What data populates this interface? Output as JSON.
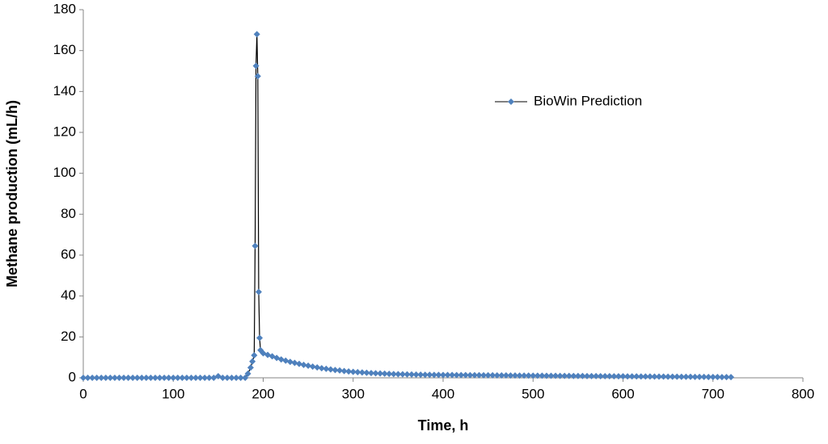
{
  "chart_data": {
    "type": "line",
    "x_label": "Time, h",
    "y_label": "Methane production (mL/h)",
    "xlim": [
      0,
      800
    ],
    "xticks": [
      0,
      100,
      200,
      300,
      400,
      500,
      600,
      700,
      800
    ],
    "ylim": [
      0,
      180
    ],
    "yticks": [
      0,
      20,
      40,
      60,
      80,
      100,
      120,
      140,
      160,
      180
    ],
    "grid": false,
    "legend": "upper-right",
    "x": [
      0,
      5,
      10,
      15,
      20,
      25,
      30,
      35,
      40,
      45,
      50,
      55,
      60,
      65,
      70,
      75,
      80,
      85,
      90,
      95,
      100,
      105,
      110,
      115,
      120,
      125,
      130,
      135,
      140,
      145,
      150,
      155,
      160,
      165,
      170,
      175,
      180,
      183,
      186,
      188,
      190,
      191,
      192,
      193,
      194,
      195,
      196,
      197,
      200,
      205,
      210,
      215,
      220,
      225,
      230,
      235,
      240,
      245,
      250,
      255,
      260,
      265,
      270,
      275,
      280,
      285,
      290,
      295,
      300,
      305,
      310,
      315,
      320,
      325,
      330,
      335,
      340,
      345,
      350,
      355,
      360,
      365,
      370,
      375,
      380,
      385,
      390,
      395,
      400,
      405,
      410,
      415,
      420,
      425,
      430,
      435,
      440,
      445,
      450,
      455,
      460,
      465,
      470,
      475,
      480,
      485,
      490,
      495,
      500,
      505,
      510,
      515,
      520,
      525,
      530,
      535,
      540,
      545,
      550,
      555,
      560,
      565,
      570,
      575,
      580,
      585,
      590,
      595,
      600,
      605,
      610,
      615,
      620,
      625,
      630,
      635,
      640,
      645,
      650,
      655,
      660,
      665,
      670,
      675,
      680,
      685,
      690,
      695,
      700,
      705,
      710,
      715,
      720
    ],
    "series": [
      {
        "name": "BioWin Prediction",
        "color": "#4f81bd",
        "line_color": "#000000",
        "values": [
          0,
          0,
          0,
          0,
          0,
          0,
          0,
          0,
          0,
          0,
          0,
          0,
          0,
          0,
          0,
          0,
          0,
          0,
          0,
          0,
          0,
          0,
          0,
          0,
          0,
          0,
          0,
          0,
          0,
          0,
          0.8,
          0,
          0,
          0,
          0,
          0,
          0,
          2,
          5,
          8,
          11,
          64.5,
          152.5,
          168,
          147.5,
          42,
          19.5,
          13.5,
          12,
          11.2,
          10.5,
          9.7,
          9.0,
          8.4,
          7.8,
          7.3,
          6.8,
          6.3,
          5.9,
          5.5,
          5.1,
          4.7,
          4.4,
          4.1,
          3.8,
          3.6,
          3.3,
          3.1,
          2.9,
          2.75,
          2.6,
          2.45,
          2.3,
          2.2,
          2.1,
          2.0,
          1.9,
          1.85,
          1.8,
          1.75,
          1.7,
          1.65,
          1.6,
          1.55,
          1.5,
          1.48,
          1.45,
          1.42,
          1.4,
          1.38,
          1.36,
          1.35,
          1.33,
          1.31,
          1.3,
          1.28,
          1.26,
          1.25,
          1.23,
          1.21,
          1.2,
          1.18,
          1.16,
          1.15,
          1.13,
          1.11,
          1.1,
          1.08,
          1.06,
          1.05,
          1.03,
          1.01,
          1.0,
          0.98,
          0.96,
          0.95,
          0.93,
          0.91,
          0.9,
          0.88,
          0.86,
          0.85,
          0.83,
          0.81,
          0.8,
          0.78,
          0.76,
          0.75,
          0.73,
          0.71,
          0.7,
          0.68,
          0.66,
          0.65,
          0.63,
          0.61,
          0.6,
          0.58,
          0.56,
          0.55,
          0.53,
          0.51,
          0.5,
          0.48,
          0.46,
          0.45,
          0.43,
          0.41,
          0.4,
          0.38,
          0.36,
          0.35,
          0.33
        ]
      }
    ]
  }
}
